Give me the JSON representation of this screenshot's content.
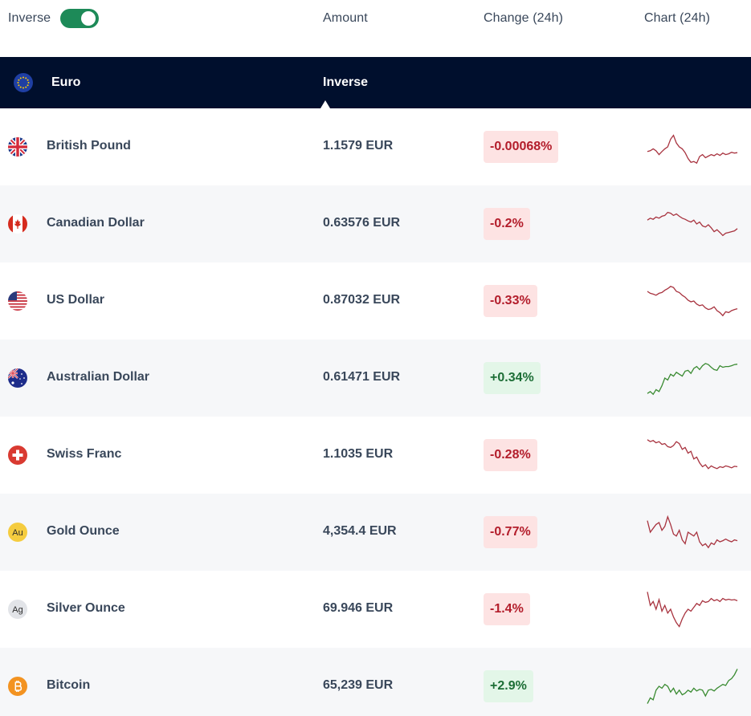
{
  "header": {
    "inverse_label": "Inverse",
    "inverse_on": true,
    "amount_label": "Amount",
    "change_label": "Change (24h)",
    "chart_label": "Chart (24h)"
  },
  "base": {
    "name": "Euro",
    "icon": "eu-flag-icon",
    "mode_label": "Inverse"
  },
  "colors": {
    "brand_band": "#000f2d",
    "toggle_on": "#1d8a58",
    "negative": "#b31d2b",
    "negative_bg": "#fde3e3",
    "positive": "#1d6e36",
    "positive_bg": "#e3f6e8",
    "spark_negative": "#a8333f",
    "spark_positive": "#3a8b32"
  },
  "rows": [
    {
      "name": "British Pound",
      "icon": "uk-flag-icon",
      "amount": "1.1579 EUR",
      "change": "-0.00068%",
      "direction": "down",
      "spark": [
        0.62,
        0.6,
        0.55,
        0.6,
        0.7,
        0.62,
        0.55,
        0.5,
        0.3,
        0.2,
        0.4,
        0.5,
        0.55,
        0.65,
        0.8,
        0.9,
        0.88,
        0.92,
        0.75,
        0.7,
        0.78,
        0.74,
        0.7,
        0.73,
        0.68,
        0.72,
        0.66,
        0.7,
        0.68,
        0.64,
        0.66,
        0.65
      ]
    },
    {
      "name": "Canadian Dollar",
      "icon": "canada-flag-icon",
      "amount": "0.63576 EUR",
      "change": "-0.2%",
      "direction": "down",
      "spark": [
        0.4,
        0.35,
        0.38,
        0.32,
        0.35,
        0.3,
        0.28,
        0.2,
        0.22,
        0.28,
        0.24,
        0.3,
        0.35,
        0.38,
        0.42,
        0.45,
        0.4,
        0.5,
        0.45,
        0.55,
        0.58,
        0.52,
        0.6,
        0.7,
        0.65,
        0.72,
        0.8,
        0.74,
        0.72,
        0.7,
        0.68,
        0.62
      ]
    },
    {
      "name": "US Dollar",
      "icon": "us-flag-icon",
      "amount": "0.87032 EUR",
      "change": "-0.33%",
      "direction": "down",
      "spark": [
        0.25,
        0.3,
        0.32,
        0.35,
        0.3,
        0.28,
        0.22,
        0.18,
        0.12,
        0.15,
        0.25,
        0.28,
        0.35,
        0.4,
        0.48,
        0.52,
        0.5,
        0.58,
        0.62,
        0.6,
        0.68,
        0.72,
        0.7,
        0.65,
        0.75,
        0.8,
        0.88,
        0.78,
        0.8,
        0.75,
        0.72,
        0.7
      ]
    },
    {
      "name": "Australian Dollar",
      "icon": "australia-flag-icon",
      "amount": "0.61471 EUR",
      "change": "+0.34%",
      "direction": "up",
      "spark": [
        0.9,
        0.85,
        0.92,
        0.8,
        0.85,
        0.7,
        0.5,
        0.55,
        0.4,
        0.45,
        0.35,
        0.4,
        0.45,
        0.32,
        0.3,
        0.38,
        0.25,
        0.2,
        0.28,
        0.18,
        0.12,
        0.15,
        0.22,
        0.28,
        0.3,
        0.18,
        0.22,
        0.2,
        0.2,
        0.18,
        0.15,
        0.14
      ]
    },
    {
      "name": "Swiss Franc",
      "icon": "swiss-flag-icon",
      "amount": "1.1035 EUR",
      "change": "-0.28%",
      "direction": "down",
      "spark": [
        0.1,
        0.15,
        0.12,
        0.18,
        0.15,
        0.22,
        0.2,
        0.28,
        0.3,
        0.25,
        0.15,
        0.2,
        0.35,
        0.3,
        0.45,
        0.4,
        0.6,
        0.55,
        0.7,
        0.8,
        0.75,
        0.85,
        0.78,
        0.82,
        0.85,
        0.8,
        0.82,
        0.78,
        0.8,
        0.83,
        0.79,
        0.8
      ]
    },
    {
      "name": "Gold Ounce",
      "icon": "gold-au-icon",
      "amount": "4,354.4 EUR",
      "change": "-0.77%",
      "direction": "down",
      "spark": [
        0.2,
        0.5,
        0.4,
        0.3,
        0.25,
        0.45,
        0.35,
        0.1,
        0.3,
        0.55,
        0.6,
        0.45,
        0.7,
        0.8,
        0.5,
        0.55,
        0.6,
        0.5,
        0.75,
        0.85,
        0.8,
        0.9,
        0.78,
        0.82,
        0.7,
        0.75,
        0.72,
        0.68,
        0.72,
        0.75,
        0.7,
        0.72
      ]
    },
    {
      "name": "Silver Ounce",
      "icon": "silver-ag-icon",
      "amount": "69.946 EUR",
      "change": "-1.4%",
      "direction": "down",
      "spark": [
        0.05,
        0.4,
        0.3,
        0.5,
        0.25,
        0.55,
        0.4,
        0.6,
        0.5,
        0.7,
        0.85,
        0.95,
        0.75,
        0.6,
        0.5,
        0.55,
        0.45,
        0.35,
        0.4,
        0.28,
        0.32,
        0.3,
        0.22,
        0.28,
        0.25,
        0.3,
        0.22,
        0.26,
        0.24,
        0.26,
        0.25,
        0.28
      ]
    },
    {
      "name": "Bitcoin",
      "icon": "bitcoin-icon",
      "amount": "65,239 EUR",
      "change": "+2.9%",
      "direction": "up",
      "spark": [
        0.95,
        0.8,
        0.85,
        0.6,
        0.5,
        0.55,
        0.45,
        0.5,
        0.65,
        0.55,
        0.7,
        0.6,
        0.72,
        0.68,
        0.6,
        0.65,
        0.55,
        0.62,
        0.58,
        0.6,
        0.75,
        0.6,
        0.58,
        0.62,
        0.55,
        0.5,
        0.45,
        0.48,
        0.35,
        0.3,
        0.2,
        0.05
      ]
    }
  ]
}
